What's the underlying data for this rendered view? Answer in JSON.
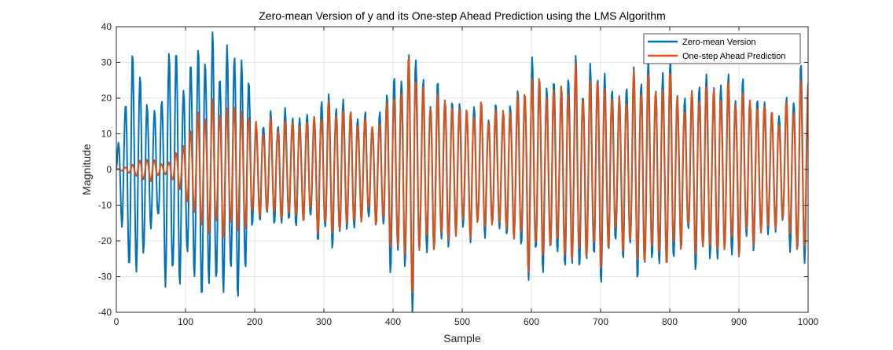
{
  "chart_data": {
    "type": "line",
    "title": "Zero-mean Version of y and its One-step Ahead Prediction using the LMS Algorithm",
    "xlabel": "Sample",
    "ylabel": "Magnitude",
    "xlim": [
      0,
      1000
    ],
    "ylim": [
      -40,
      40
    ],
    "xticks": [
      0,
      100,
      200,
      300,
      400,
      500,
      600,
      700,
      800,
      900,
      1000
    ],
    "yticks": [
      -40,
      -30,
      -20,
      -10,
      0,
      10,
      20,
      30,
      40
    ],
    "xtick_labels": [
      "0",
      "100",
      "200",
      "300",
      "400",
      "500",
      "600",
      "700",
      "800",
      "900",
      "1000"
    ],
    "ytick_labels": [
      "-40",
      "-30",
      "-20",
      "-10",
      "0",
      "10",
      "20",
      "30",
      "40"
    ],
    "grid": true,
    "legend_position": "top-right",
    "signal_period_samples": 10.5,
    "series": [
      {
        "name": "Zero-mean Version",
        "color": "#0072BD",
        "envelope": {
          "x": [
            0,
            10,
            20,
            30,
            40,
            50,
            60,
            70,
            80,
            90,
            100,
            110,
            120,
            130,
            140,
            150,
            160,
            170,
            180,
            190,
            200,
            220,
            240,
            260,
            280,
            300,
            320,
            340,
            360,
            380,
            400,
            410,
            420,
            430,
            440,
            460,
            480,
            500,
            520,
            540,
            560,
            580,
            600,
            620,
            640,
            660,
            680,
            700,
            720,
            740,
            760,
            780,
            800,
            820,
            840,
            860,
            880,
            900,
            920,
            940,
            960,
            980,
            1000
          ],
          "amplitude": [
            2,
            18,
            29,
            30,
            22,
            16,
            14,
            27,
            35,
            30,
            22,
            30,
            34,
            33,
            33,
            31,
            31,
            33,
            32,
            26,
            12,
            14,
            15,
            15,
            14,
            20,
            19,
            16,
            14,
            14,
            28,
            22,
            30,
            38,
            22,
            22,
            20,
            17,
            18,
            16,
            17,
            20,
            29,
            24,
            23,
            29,
            24,
            29,
            20,
            24,
            29,
            24,
            29,
            18,
            25,
            24,
            24,
            23,
            20,
            18,
            15,
            23,
            28
          ]
        }
      },
      {
        "name": "One-step Ahead Prediction",
        "color": "#D95319",
        "envelope": {
          "x": [
            0,
            10,
            20,
            30,
            40,
            50,
            60,
            70,
            80,
            90,
            100,
            110,
            120,
            130,
            140,
            150,
            160,
            170,
            180,
            190,
            200,
            220,
            240,
            260,
            280,
            300,
            320,
            340,
            360,
            380,
            400,
            410,
            420,
            430,
            440,
            460,
            480,
            500,
            520,
            540,
            560,
            580,
            600,
            620,
            640,
            660,
            680,
            700,
            720,
            740,
            760,
            780,
            800,
            820,
            840,
            860,
            880,
            900,
            920,
            940,
            960,
            980,
            1000
          ],
          "amplitude": [
            0,
            0.5,
            1,
            2,
            3,
            3,
            2,
            1,
            3,
            5,
            8,
            12,
            15,
            17,
            17,
            17,
            17,
            17,
            17,
            15,
            12,
            12,
            13,
            13,
            13,
            17,
            17,
            15,
            13,
            13,
            22,
            20,
            28,
            34,
            20,
            20,
            19,
            16,
            17,
            15,
            16,
            19,
            26,
            22,
            21,
            26,
            22,
            26,
            18,
            22,
            26,
            22,
            26,
            17,
            22,
            22,
            22,
            21,
            19,
            17,
            14,
            20,
            25
          ]
        }
      }
    ]
  }
}
